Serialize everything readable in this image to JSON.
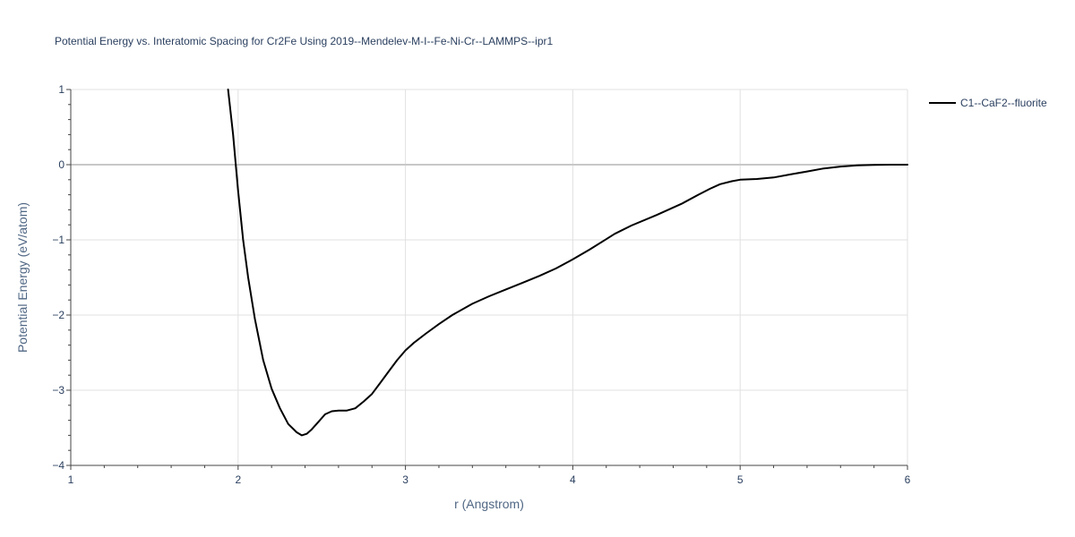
{
  "chart_data": {
    "type": "line",
    "title": "Potential Energy vs. Interatomic Spacing for Cr2Fe Using 2019--Mendelev-M-I--Fe-Ni-Cr--LAMMPS--ipr1",
    "xlabel": "r (Angstrom)",
    "ylabel": "Potential Energy (eV/atom)",
    "xlim": [
      1,
      6
    ],
    "ylim": [
      -4,
      1
    ],
    "x_ticks": [
      "1",
      "2",
      "3",
      "4",
      "5",
      "6"
    ],
    "y_ticks": [
      "1",
      "0",
      "−1",
      "−2",
      "−3",
      "−4"
    ],
    "grid": true,
    "legend_position": "top-right",
    "series": [
      {
        "name": "C1--CaF2--fluorite",
        "color": "#000000",
        "x": [
          1.94,
          1.97,
          2.0,
          2.03,
          2.06,
          2.1,
          2.15,
          2.2,
          2.25,
          2.3,
          2.35,
          2.38,
          2.41,
          2.44,
          2.48,
          2.52,
          2.56,
          2.6,
          2.65,
          2.7,
          2.75,
          2.8,
          2.85,
          2.9,
          2.95,
          3.0,
          3.05,
          3.12,
          3.2,
          3.28,
          3.4,
          3.5,
          3.6,
          3.7,
          3.8,
          3.9,
          4.0,
          4.1,
          4.2,
          4.25,
          4.35,
          4.5,
          4.65,
          4.75,
          4.82,
          4.88,
          4.95,
          5.0,
          5.1,
          5.2,
          5.3,
          5.4,
          5.5,
          5.6,
          5.7,
          5.8,
          5.9,
          6.0
        ],
        "y": [
          1.0,
          0.4,
          -0.35,
          -1.0,
          -1.5,
          -2.05,
          -2.6,
          -2.98,
          -3.24,
          -3.45,
          -3.56,
          -3.6,
          -3.58,
          -3.52,
          -3.42,
          -3.32,
          -3.28,
          -3.27,
          -3.27,
          -3.24,
          -3.15,
          -3.05,
          -2.9,
          -2.75,
          -2.6,
          -2.47,
          -2.37,
          -2.25,
          -2.12,
          -2.0,
          -1.85,
          -1.75,
          -1.66,
          -1.57,
          -1.48,
          -1.38,
          -1.26,
          -1.13,
          -0.99,
          -0.92,
          -0.81,
          -0.67,
          -0.52,
          -0.4,
          -0.32,
          -0.26,
          -0.22,
          -0.2,
          -0.19,
          -0.17,
          -0.13,
          -0.09,
          -0.05,
          -0.025,
          -0.01,
          -0.003,
          0.0,
          0.0
        ]
      }
    ]
  }
}
